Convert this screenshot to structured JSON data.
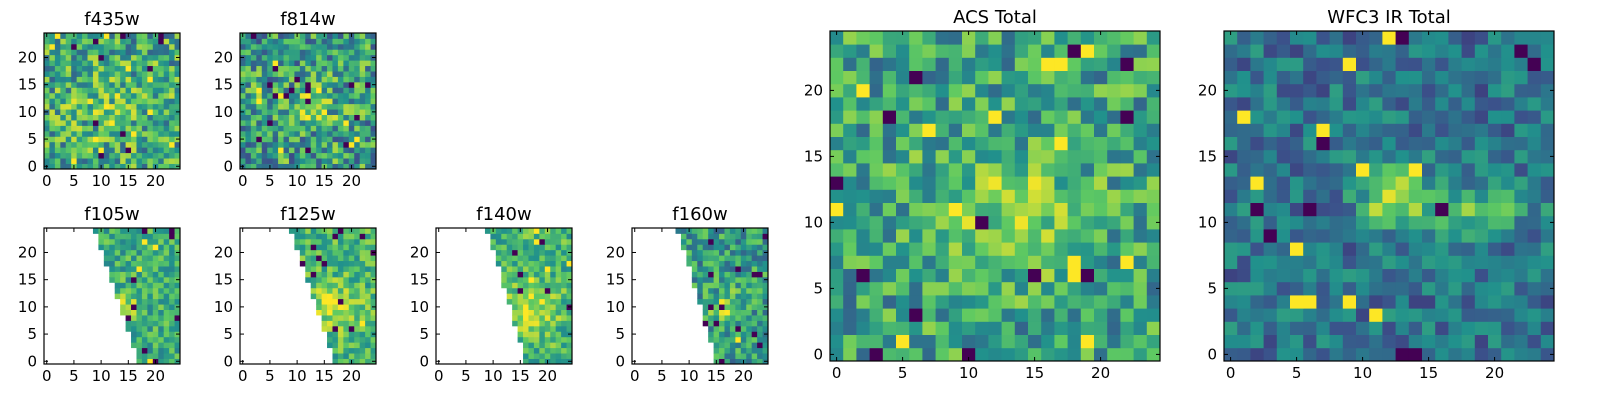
{
  "colormap": [
    "#440154",
    "#3b528b",
    "#21918c",
    "#5ec962",
    "#fde725"
  ],
  "chart_data": [
    {
      "type": "heatmap",
      "id": "f435w",
      "title": "f435w",
      "grid_size": 25,
      "mask": "none",
      "seed": 11,
      "base": 0.6,
      "noise": 0.3,
      "blobs": [
        {
          "x": 12,
          "y": 11,
          "sx": 6,
          "sy": 4,
          "a": 0.12
        }
      ],
      "xticks": [
        0,
        5,
        10,
        15,
        20
      ],
      "yticks": [
        0,
        5,
        10,
        15,
        20
      ],
      "xlim": [
        -0.5,
        24.5
      ],
      "ylim": [
        -0.5,
        24.5
      ]
    },
    {
      "type": "heatmap",
      "id": "f814w",
      "title": "f814w",
      "grid_size": 25,
      "mask": "none",
      "seed": 23,
      "base": 0.55,
      "noise": 0.32,
      "blobs": [
        {
          "x": 12,
          "y": 11,
          "sx": 5,
          "sy": 3,
          "a": 0.18
        }
      ],
      "xticks": [
        0,
        5,
        10,
        15,
        20
      ],
      "yticks": [
        0,
        5,
        10,
        15,
        20
      ],
      "xlim": [
        -0.5,
        24.5
      ],
      "ylim": [
        -0.5,
        24.5
      ]
    },
    {
      "type": "heatmap",
      "id": "f105w",
      "title": "f105w",
      "grid_size": 25,
      "mask": "diagonal",
      "mask_top": 9,
      "mask_bottom": 17,
      "seed": 37,
      "base": 0.62,
      "noise": 0.2,
      "blobs": [
        {
          "x": 14,
          "y": 10,
          "sx": 2,
          "sy": 2,
          "a": 0.3
        }
      ],
      "xticks": [
        0,
        5,
        10,
        15,
        20
      ],
      "yticks": [
        0,
        5,
        10,
        15,
        20
      ],
      "xlim": [
        -0.5,
        24.5
      ],
      "ylim": [
        -0.5,
        24.5
      ]
    },
    {
      "type": "heatmap",
      "id": "f125w",
      "title": "f125w",
      "grid_size": 25,
      "mask": "diagonal",
      "mask_top": 9,
      "mask_bottom": 17,
      "seed": 41,
      "base": 0.66,
      "noise": 0.2,
      "blobs": [
        {
          "x": 17,
          "y": 10,
          "sx": 3,
          "sy": 3,
          "a": 0.25
        }
      ],
      "xticks": [
        0,
        5,
        10,
        15,
        20
      ],
      "yticks": [
        0,
        5,
        10,
        15,
        20
      ],
      "xlim": [
        -0.5,
        24.5
      ],
      "ylim": [
        -0.5,
        24.5
      ]
    },
    {
      "type": "heatmap",
      "id": "f140w",
      "title": "f140w",
      "grid_size": 25,
      "mask": "diagonal",
      "mask_top": 9,
      "mask_bottom": 16,
      "seed": 53,
      "base": 0.66,
      "noise": 0.2,
      "blobs": [
        {
          "x": 17,
          "y": 10,
          "sx": 3,
          "sy": 3,
          "a": 0.28
        }
      ],
      "xticks": [
        0,
        5,
        10,
        15,
        20
      ],
      "yticks": [
        0,
        5,
        10,
        15,
        20
      ],
      "xlim": [
        -0.5,
        24.5
      ],
      "ylim": [
        -0.5,
        24.5
      ]
    },
    {
      "type": "heatmap",
      "id": "f160w",
      "title": "f160w",
      "grid_size": 25,
      "mask": "diagonal",
      "mask_top": 8,
      "mask_bottom": 15,
      "seed": 67,
      "base": 0.55,
      "noise": 0.24,
      "blobs": [
        {
          "x": 17,
          "y": 10,
          "sx": 2,
          "sy": 2,
          "a": 0.3
        }
      ],
      "xticks": [
        0,
        5,
        10,
        15,
        20
      ],
      "yticks": [
        0,
        5,
        10,
        15,
        20
      ],
      "xlim": [
        -0.5,
        24.5
      ],
      "ylim": [
        -0.5,
        24.5
      ]
    },
    {
      "type": "heatmap",
      "id": "acs-total",
      "title": "ACS Total",
      "grid_size": 25,
      "mask": "none",
      "seed": 79,
      "base": 0.58,
      "noise": 0.26,
      "blobs": [
        {
          "x": 13,
          "y": 11,
          "sx": 4,
          "sy": 3,
          "a": 0.25
        }
      ],
      "xticks": [
        0,
        5,
        10,
        15,
        20
      ],
      "yticks": [
        0,
        5,
        10,
        15,
        20
      ],
      "xlim": [
        -0.5,
        24.5
      ],
      "ylim": [
        -0.5,
        24.5
      ]
    },
    {
      "type": "heatmap",
      "id": "wfc3-ir-total",
      "title": "WFC3 IR Total",
      "grid_size": 25,
      "mask": "none",
      "seed": 97,
      "base": 0.38,
      "noise": 0.18,
      "blobs": [
        {
          "x": 12,
          "y": 12,
          "sx": 1.5,
          "sy": 1.5,
          "a": 0.55
        },
        {
          "x": 18,
          "y": 11,
          "sx": 3,
          "sy": 1.2,
          "a": 0.4
        }
      ],
      "xticks": [
        0,
        5,
        10,
        15,
        20
      ],
      "yticks": [
        0,
        5,
        10,
        15,
        20
      ],
      "xlim": [
        -0.5,
        24.5
      ],
      "ylim": [
        -0.5,
        24.5
      ]
    }
  ]
}
